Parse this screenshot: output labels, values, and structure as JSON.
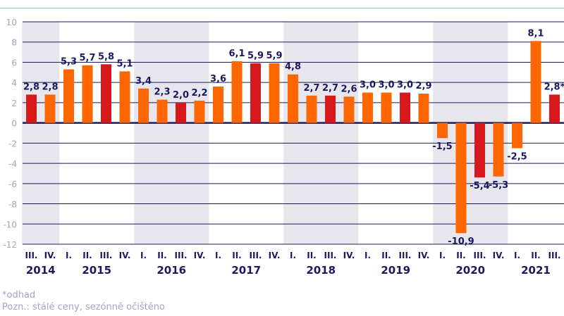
{
  "chart_data": {
    "type": "bar",
    "ylim": [
      -12,
      10
    ],
    "yticks": [
      10,
      8,
      6,
      4,
      2,
      0,
      -2,
      -4,
      -6,
      -8,
      -10,
      -12
    ],
    "grid": true,
    "categories": [
      "III.",
      "IV.",
      "I.",
      "II.",
      "III.",
      "IV.",
      "I.",
      "II.",
      "III.",
      "IV.",
      "I.",
      "II.",
      "III.",
      "IV.",
      "I.",
      "II.",
      "III.",
      "IV.",
      "I.",
      "II.",
      "III.",
      "IV.",
      "I.",
      "II.",
      "III.",
      "IV.",
      "I.",
      "II.",
      "III."
    ],
    "years": [
      {
        "label": "2014",
        "start": 0,
        "count": 2
      },
      {
        "label": "2015",
        "start": 2,
        "count": 4
      },
      {
        "label": "2016",
        "start": 6,
        "count": 4
      },
      {
        "label": "2017",
        "start": 10,
        "count": 4
      },
      {
        "label": "2018",
        "start": 14,
        "count": 4
      },
      {
        "label": "2019",
        "start": 18,
        "count": 4
      },
      {
        "label": "2020",
        "start": 22,
        "count": 4
      },
      {
        "label": "2021",
        "start": 26,
        "count": 3
      }
    ],
    "values": [
      2.8,
      2.8,
      5.3,
      5.7,
      5.8,
      5.1,
      3.4,
      2.3,
      2.0,
      2.2,
      3.6,
      6.1,
      5.9,
      5.9,
      4.8,
      2.7,
      2.7,
      2.6,
      3.0,
      3.0,
      3.0,
      2.9,
      -1.5,
      -10.9,
      -5.4,
      -5.3,
      -2.5,
      8.1,
      2.8
    ],
    "data_labels": [
      "2,8",
      "2,8",
      "5,3",
      "5,7",
      "5,8",
      "5,1",
      "3,4",
      "2,3",
      "2,0",
      "2,2",
      "3,6",
      "6,1",
      "5,9",
      "5,9",
      "4,8",
      "2,7",
      "2,7",
      "2,6",
      "3,0",
      "3,0",
      "3,0",
      "2,9",
      "-1,5",
      "-10,9",
      "-5,4",
      "-5,3",
      "-2,5",
      "8,1",
      "2,8*"
    ],
    "colors": {
      "q3": "#d7191c",
      "other": "#ff6600",
      "grid": "#1a1a5e",
      "band": "#e6e6ec",
      "text": "#1a1a5e",
      "axis_tick": "#a3a3c2"
    }
  },
  "footnotes": [
    "*odhad",
    "Pozn.: stálé ceny, sezónně očištěno"
  ]
}
